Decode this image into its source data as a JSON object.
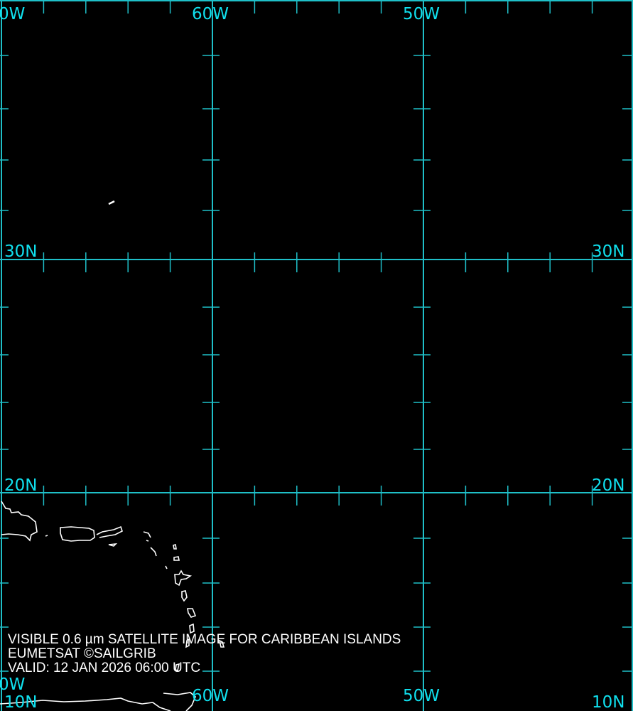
{
  "map": {
    "grid_color": "#1fbfc8",
    "label_color": "#10e0ee",
    "coast_color": "#ffffff",
    "labels": {
      "top_70w": "0W",
      "top_60w": "60W",
      "top_50w": "50W",
      "left_30n": "30N",
      "right_30n": "30N",
      "left_20n": "20N",
      "right_20n": "20N",
      "bottom_70w": "0W",
      "bottom_60w": "60W",
      "bottom_50w": "50W",
      "left_10n": "10N",
      "right_10n": "10N"
    }
  },
  "caption": {
    "line1": "VISIBLE 0.6 µm SATELLITE IMAGE FOR CARIBBEAN ISLANDS",
    "line2": "EUMETSAT ©SAILGRIB",
    "line3": "VALID:  12 JAN 2026 06:00 UTC"
  }
}
